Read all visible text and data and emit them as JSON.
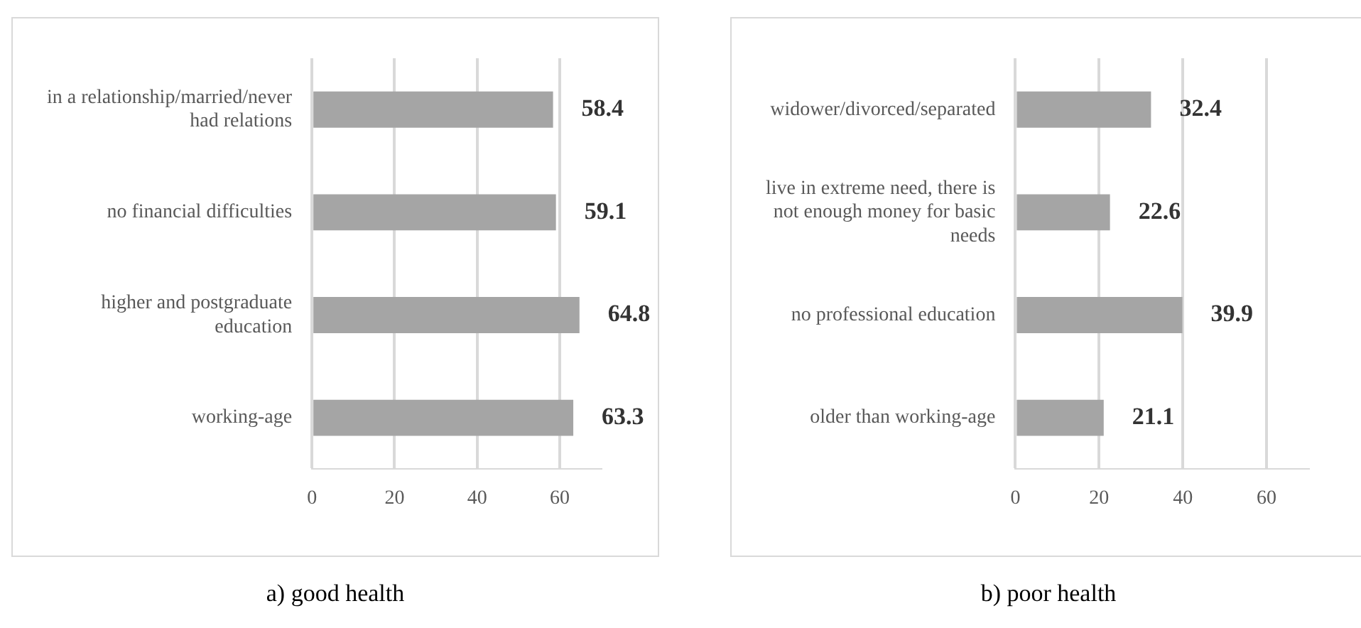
{
  "chart_data": [
    {
      "type": "bar",
      "orientation": "horizontal",
      "title": "a) good health",
      "categories": [
        "in a relationship/married/never had relations",
        "no financial difficulties",
        "higher and postgraduate education",
        "working-age"
      ],
      "values": [
        58.4,
        59.1,
        64.8,
        63.3
      ],
      "color": "#a5a5a5",
      "xlim": [
        0,
        70
      ],
      "xticks": [
        0,
        20,
        40,
        60
      ],
      "grid": "x",
      "data_labels": true
    },
    {
      "type": "bar",
      "orientation": "horizontal",
      "title": "b) poor health",
      "categories": [
        "widower/divorced/separated",
        "live in extreme need, there is not enough money for basic needs",
        "no professional education",
        "older than working-age"
      ],
      "values": [
        32.4,
        22.6,
        39.9,
        21.1
      ],
      "color": "#a5a5a5",
      "xlim": [
        0,
        70
      ],
      "xticks": [
        0,
        20,
        40,
        60
      ],
      "grid": "x",
      "data_labels": true
    }
  ]
}
